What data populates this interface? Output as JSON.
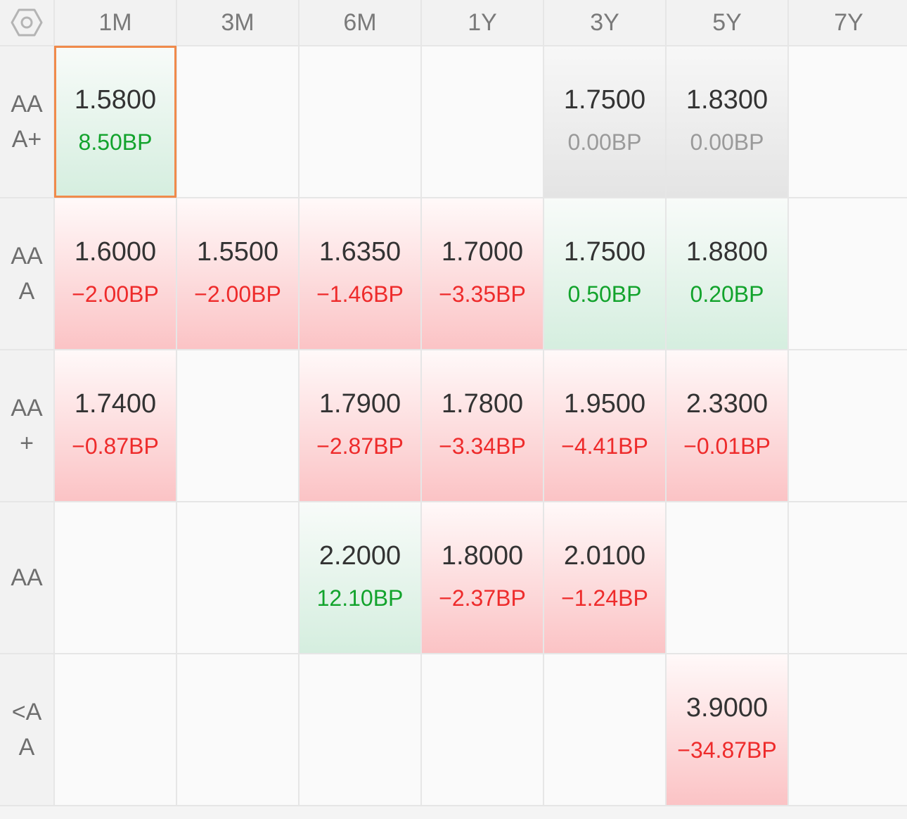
{
  "colors": {
    "up": "#12a32c",
    "down": "#ee2b2b",
    "flat": "#9a9a9a",
    "selected_border": "#f08a4b"
  },
  "corner_icon": "hexagon-settings-icon",
  "columns": [
    "1M",
    "3M",
    "6M",
    "1Y",
    "3Y",
    "5Y",
    "7Y"
  ],
  "rows": [
    {
      "label": "AA\nA+",
      "cells": [
        {
          "value": "1.5800",
          "change": "8.50BP",
          "trend": "up",
          "selected": true
        },
        null,
        null,
        null,
        {
          "value": "1.7500",
          "change": "0.00BP",
          "trend": "flat"
        },
        {
          "value": "1.8300",
          "change": "0.00BP",
          "trend": "flat"
        },
        null
      ]
    },
    {
      "label": "AA\nA",
      "cells": [
        {
          "value": "1.6000",
          "change": "−2.00BP",
          "trend": "down"
        },
        {
          "value": "1.5500",
          "change": "−2.00BP",
          "trend": "down"
        },
        {
          "value": "1.6350",
          "change": "−1.46BP",
          "trend": "down"
        },
        {
          "value": "1.7000",
          "change": "−3.35BP",
          "trend": "down"
        },
        {
          "value": "1.7500",
          "change": "0.50BP",
          "trend": "up"
        },
        {
          "value": "1.8800",
          "change": "0.20BP",
          "trend": "up"
        },
        null
      ]
    },
    {
      "label": "AA\n+",
      "cells": [
        {
          "value": "1.7400",
          "change": "−0.87BP",
          "trend": "down"
        },
        null,
        {
          "value": "1.7900",
          "change": "−2.87BP",
          "trend": "down"
        },
        {
          "value": "1.7800",
          "change": "−3.34BP",
          "trend": "down"
        },
        {
          "value": "1.9500",
          "change": "−4.41BP",
          "trend": "down"
        },
        {
          "value": "2.3300",
          "change": "−0.01BP",
          "trend": "down"
        },
        null
      ]
    },
    {
      "label": "AA",
      "cells": [
        null,
        null,
        {
          "value": "2.2000",
          "change": "12.10BP",
          "trend": "up"
        },
        {
          "value": "1.8000",
          "change": "−2.37BP",
          "trend": "down"
        },
        {
          "value": "2.0100",
          "change": "−1.24BP",
          "trend": "down"
        },
        null,
        null
      ]
    },
    {
      "label": "<A\nA",
      "cells": [
        null,
        null,
        null,
        null,
        null,
        {
          "value": "3.9000",
          "change": "−34.87BP",
          "trend": "down"
        },
        null
      ]
    }
  ]
}
